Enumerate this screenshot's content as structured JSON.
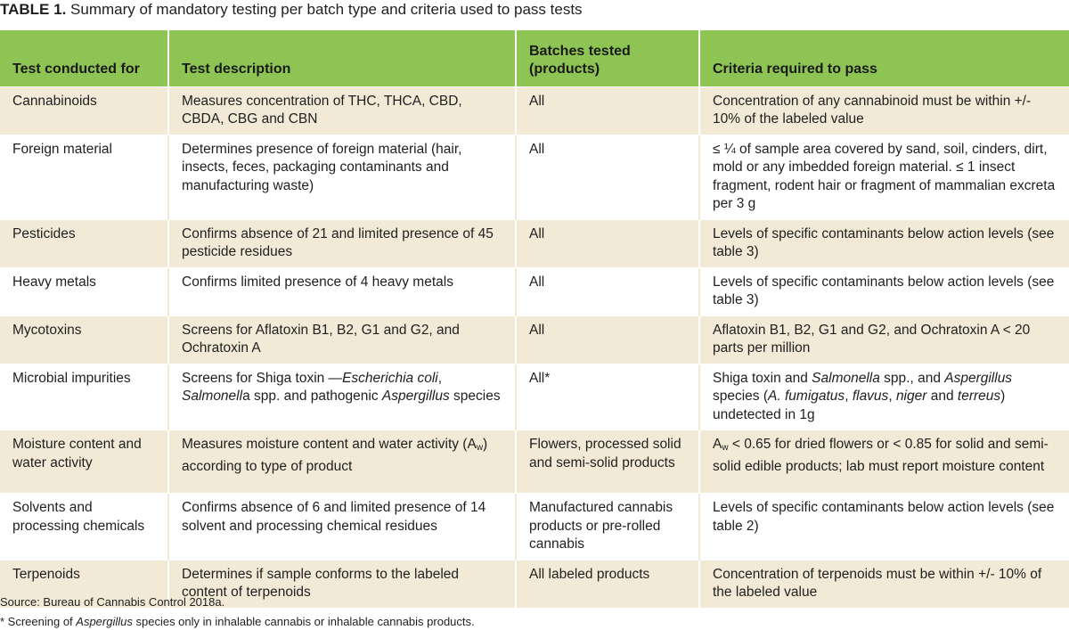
{
  "caption": {
    "label": "TABLE 1.",
    "text": "Summary of mandatory testing per batch type and criteria used to pass tests"
  },
  "headers": {
    "c1": "Test conducted for",
    "c2": "Test description",
    "c3": "Batches tested (products)",
    "c4": "Criteria required to pass"
  },
  "rows": [
    {
      "test": "Cannabinoids",
      "description": "Measures concentration of THC, THCA, CBD, CBDA, CBG and CBN",
      "batches": "All",
      "criteria": "Concentration of any cannabinoid must be within +/- 10% of the labeled value"
    },
    {
      "test": "Foreign material",
      "description": "Determines presence of foreign material (hair, insects, feces, packaging contaminants and manufacturing waste)",
      "batches": "All",
      "criteria": "≤ ¼ of sample area covered by sand, soil, cinders, dirt, mold or any imbedded foreign material. ≤ 1 insect fragment, rodent hair or fragment of mammalian excreta per 3 g"
    },
    {
      "test": "Pesticides",
      "description": "Confirms absence of 21 and limited presence of 45 pesticide residues",
      "batches": "All",
      "criteria": "Levels of specific contaminants below action levels (see table 3)"
    },
    {
      "test": "Heavy metals",
      "description": "Confirms limited presence of 4 heavy metals",
      "batches": "All",
      "criteria": "Levels of specific contaminants below action levels (see table 3)"
    },
    {
      "test": "Mycotoxins",
      "description": "Screens for Aflatoxin B1, B2, G1 and G2, and Ochratoxin A",
      "batches": "All",
      "criteria": "Aflatoxin B1, B2, G1 and G2, and Ochratoxin A < 20 parts per million"
    },
    {
      "test": "Microbial impurities",
      "description_parts": {
        "p1": "Screens for Shiga toxin —",
        "i1": "Escherichia coli",
        "p2": ", ",
        "i2": "Salmonell",
        "p3": "a spp. and pathogenic ",
        "i3": "Aspergillus",
        "p4": " species"
      },
      "batches": "All*",
      "criteria_parts": {
        "p1": "Shiga toxin and ",
        "i1": "Salmonella",
        "p2": " spp., and ",
        "i2": "Aspergillus",
        "p3": " species (",
        "i3": "A. fumigatus",
        "p4": ", ",
        "i4": "flavus",
        "p5": ", ",
        "i5": "niger",
        "p6": " and ",
        "i6": "terreus",
        "p7": ") undetected in 1g"
      }
    },
    {
      "test": "Moisture content and water activity",
      "description_parts": {
        "p1": "Measures moisture content and water activity (A",
        "sub": "w",
        "p2": ") according to type of product"
      },
      "batches": "Flowers, processed solid and semi-solid products",
      "criteria_parts": {
        "p1": "A",
        "sub": "w",
        "p2": " < 0.65 for dried flowers or < 0.85 for solid and semi-solid edible products; lab must report moisture content"
      }
    },
    {
      "test": "Solvents and processing chemicals",
      "description": "Confirms absence of 6 and limited presence of 14 solvent and processing chemical residues",
      "batches": "Manufactured cannabis products or pre-rolled cannabis",
      "criteria": "Levels of specific contaminants below action levels (see table 2)"
    },
    {
      "test": "Terpenoids",
      "description": "Determines if sample conforms to the labeled content of terpenoids",
      "batches": "All labeled products",
      "criteria": "Concentration of terpenoids must be within +/- 10% of the labeled value"
    }
  ],
  "notes": {
    "source": "Source: Bureau of Cannabis Control 2018a.",
    "footnote_p1": "*  Screening of ",
    "footnote_i1": "Aspergillus",
    "footnote_p2": " species only in inhalable cannabis or inhalable cannabis products."
  }
}
